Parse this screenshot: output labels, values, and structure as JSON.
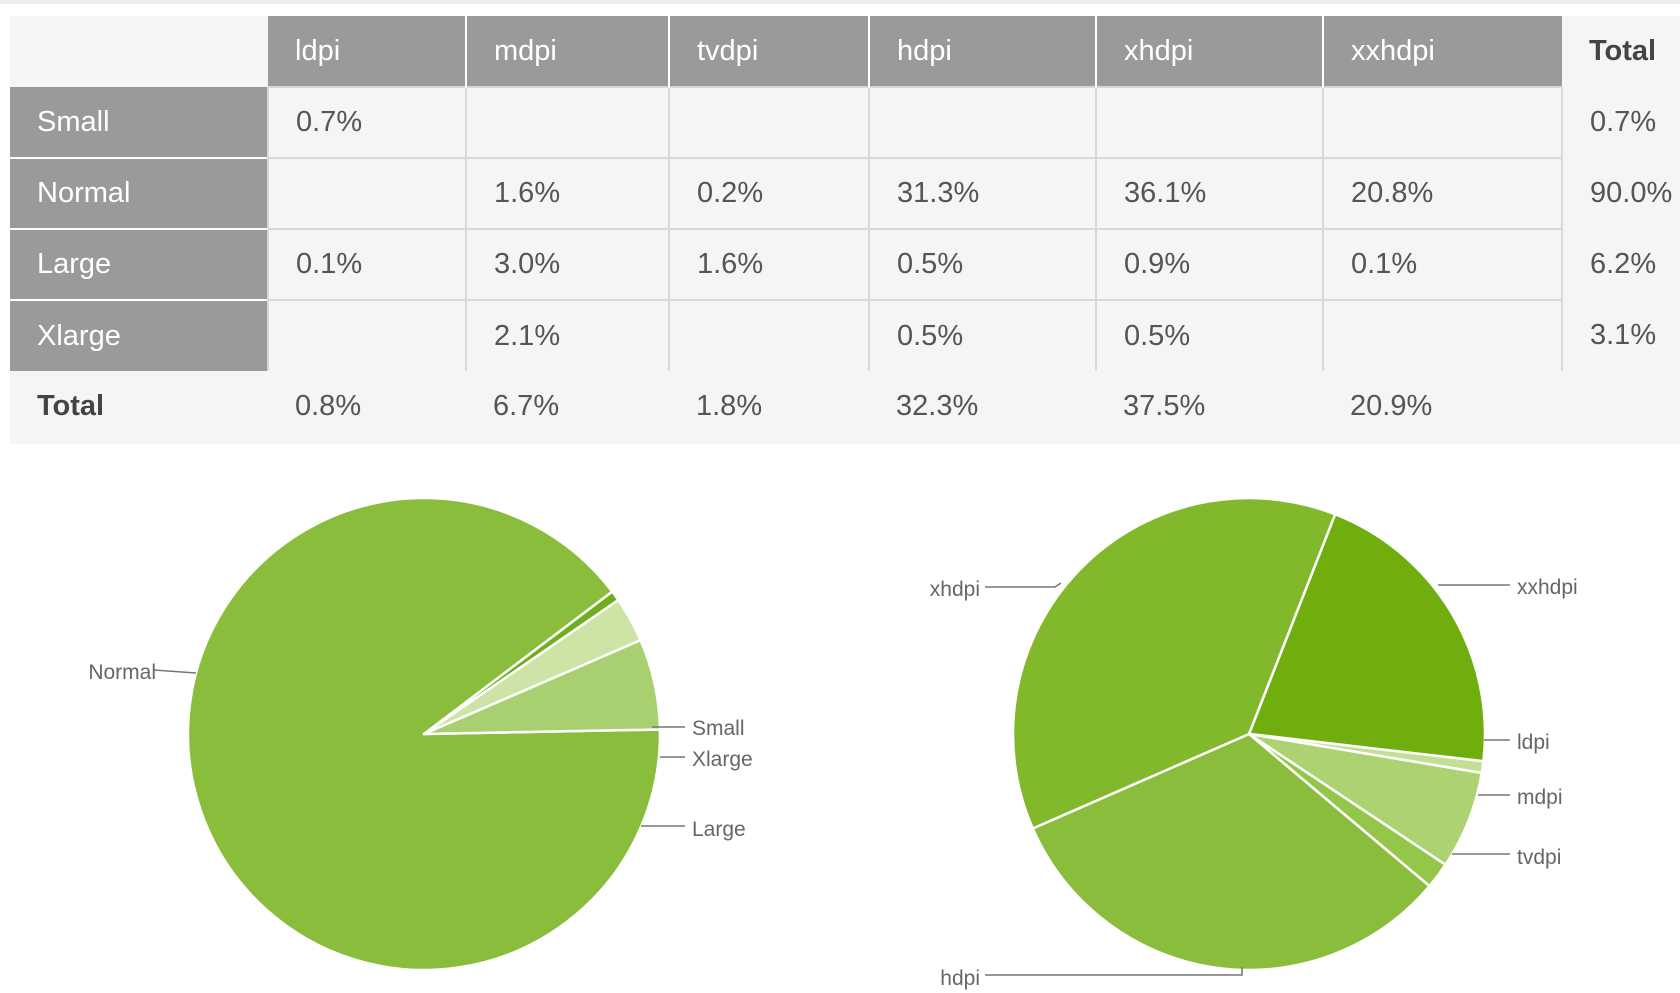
{
  "table": {
    "columns": [
      "ldpi",
      "mdpi",
      "tvdpi",
      "hdpi",
      "xhdpi",
      "xxhdpi"
    ],
    "total_label": "Total",
    "rows": [
      {
        "label": "Small",
        "cells": [
          "0.7%",
          "",
          "",
          "",
          "",
          ""
        ],
        "total": "0.7%"
      },
      {
        "label": "Normal",
        "cells": [
          "",
          "1.6%",
          "0.2%",
          "31.3%",
          "36.1%",
          "20.8%"
        ],
        "total": "90.0%"
      },
      {
        "label": "Large",
        "cells": [
          "0.1%",
          "3.0%",
          "1.6%",
          "0.5%",
          "0.9%",
          "0.1%"
        ],
        "total": "6.2%"
      },
      {
        "label": "Xlarge",
        "cells": [
          "",
          "2.1%",
          "",
          "0.5%",
          "0.5%",
          ""
        ],
        "total": "3.1%"
      }
    ],
    "totals_row": {
      "label": "Total",
      "cells": [
        "0.8%",
        "6.7%",
        "1.8%",
        "32.3%",
        "37.5%",
        "20.9%"
      ]
    }
  },
  "chart_data": [
    {
      "type": "pie",
      "categories": [
        "Normal",
        "Small",
        "Xlarge",
        "Large"
      ],
      "values": [
        90.0,
        0.7,
        3.1,
        6.2
      ],
      "colors": [
        "#8bbd3c",
        "#6fae1c",
        "#cde4a6",
        "#a9d070"
      ]
    },
    {
      "type": "pie",
      "categories": [
        "xxhdpi",
        "ldpi",
        "mdpi",
        "tvdpi",
        "hdpi",
        "xhdpi"
      ],
      "values": [
        20.9,
        0.8,
        6.7,
        1.8,
        32.3,
        37.5
      ],
      "colors": [
        "#6fae0c",
        "#c3df95",
        "#acd272",
        "#94c64a",
        "#8bbd3c",
        "#82b82c"
      ]
    }
  ]
}
